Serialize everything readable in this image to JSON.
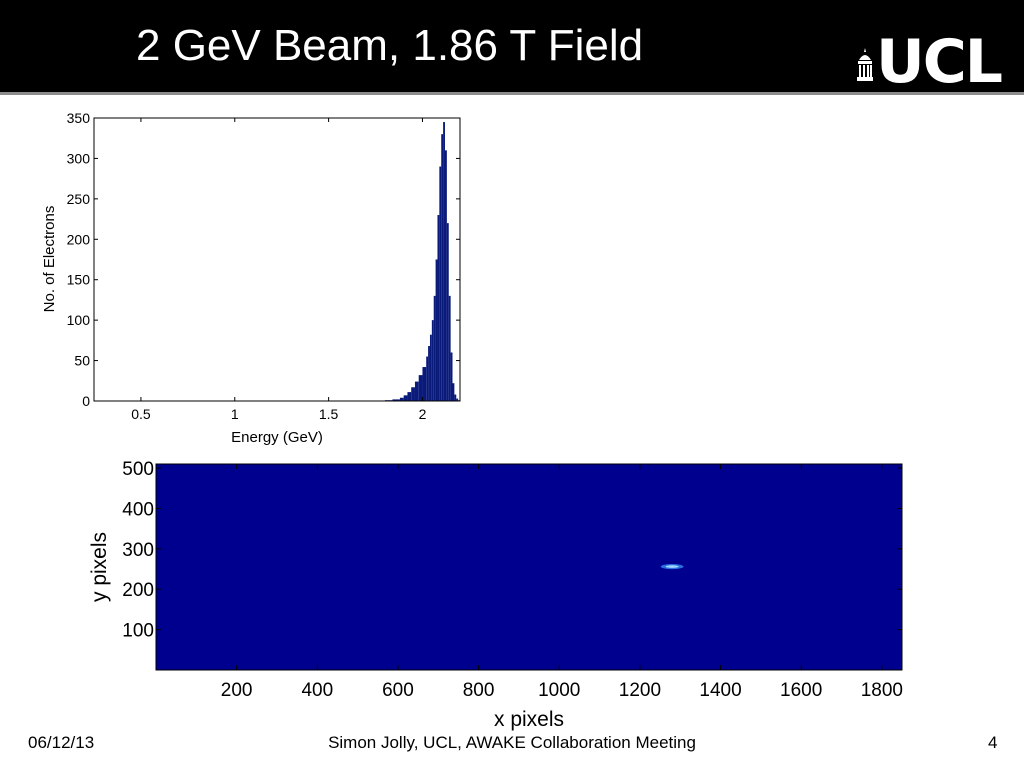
{
  "slide": {
    "title": "2 GeV Beam, 1.86 T Field",
    "logo_text": "UCL",
    "footer": {
      "date": "06/12/13",
      "center": "Simon Jolly, UCL, AWAKE Collaboration Meeting",
      "page_number": "4"
    }
  },
  "colors": {
    "title_bar": "#000000",
    "bar_fill": "#0a1a7a",
    "heatmap_bg": "#00008f",
    "spot_core": "#9fd8ff"
  },
  "chart_data": [
    {
      "type": "bar",
      "title": "",
      "xlabel": "Energy (GeV)",
      "ylabel": "No. of Electrons",
      "xlim": [
        0.25,
        2.2
      ],
      "ylim": [
        0,
        350
      ],
      "xticks": [
        0.5,
        1,
        1.5,
        2
      ],
      "xtick_labels": [
        "0.5",
        "1",
        "1.5",
        "2"
      ],
      "yticks": [
        0,
        50,
        100,
        150,
        200,
        250,
        300,
        350
      ],
      "ytick_labels": [
        "0",
        "50",
        "100",
        "150",
        "200",
        "250",
        "300",
        "350"
      ],
      "grid": false,
      "bins": {
        "x": [
          1.8,
          1.84,
          1.88,
          1.9,
          1.92,
          1.94,
          1.96,
          1.98,
          2.0,
          2.02,
          2.03,
          2.04,
          2.05,
          2.06,
          2.07,
          2.08,
          2.09,
          2.1,
          2.11,
          2.12,
          2.13,
          2.14,
          2.15,
          2.16,
          2.17,
          2.18,
          2.19
        ],
        "values": [
          1,
          2,
          4,
          7,
          11,
          17,
          24,
          32,
          42,
          55,
          68,
          82,
          100,
          130,
          175,
          230,
          290,
          330,
          345,
          310,
          220,
          130,
          60,
          22,
          8,
          3,
          1
        ]
      }
    },
    {
      "type": "heatmap",
      "title": "",
      "xlabel": "x pixels",
      "ylabel": "y pixels",
      "xlim": [
        0,
        1850
      ],
      "ylim": [
        0,
        510
      ],
      "xticks": [
        200,
        400,
        600,
        800,
        1000,
        1200,
        1400,
        1600,
        1800
      ],
      "xtick_labels": [
        "200",
        "400",
        "600",
        "800",
        "1000",
        "1200",
        "1400",
        "1600",
        "1800"
      ],
      "yticks": [
        100,
        200,
        300,
        400,
        500
      ],
      "ytick_labels": [
        "100",
        "200",
        "300",
        "400",
        "500"
      ],
      "grid": false,
      "spot": {
        "x": 1280,
        "y": 256,
        "width_x": 40,
        "width_y": 8
      }
    }
  ]
}
